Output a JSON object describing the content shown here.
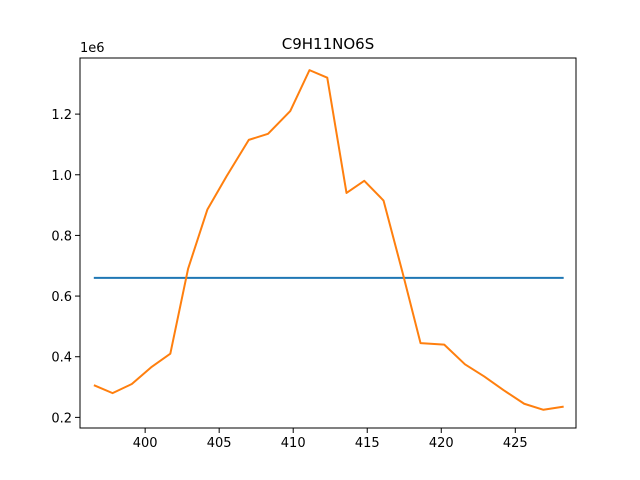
{
  "chart_data": {
    "type": "line",
    "title": "C9H11NO6S",
    "xlabel": "",
    "ylabel": "",
    "y_offset_label": "1e6",
    "xlim": [
      395.6,
      429.1
    ],
    "ylim": [
      0.165,
      1.385
    ],
    "x_ticks": [
      400,
      405,
      410,
      415,
      420,
      425
    ],
    "x_tick_labels": [
      "400",
      "405",
      "410",
      "415",
      "420",
      "425"
    ],
    "y_ticks": [
      0.2,
      0.4,
      0.6,
      0.8,
      1.0,
      1.2
    ],
    "y_tick_labels": [
      "0.2",
      "0.4",
      "0.6",
      "0.8",
      "1.0",
      "1.2"
    ],
    "grid": false,
    "series": [
      {
        "color": "#1f77b4",
        "x": [
          396.6,
          428.2
        ],
        "y": [
          0.66,
          0.66
        ]
      },
      {
        "color": "#ff7f0e",
        "x": [
          396.6,
          397.8,
          399.1,
          400.4,
          401.7,
          402.9,
          404.2,
          405.5,
          407.0,
          408.3,
          409.8,
          411.1,
          412.3,
          413.6,
          414.8,
          416.1,
          417.4,
          418.6,
          420.2,
          421.6,
          422.9,
          424.2,
          425.6,
          426.9,
          428.2
        ],
        "y": [
          0.305,
          0.28,
          0.31,
          0.365,
          0.41,
          0.69,
          0.885,
          0.995,
          1.115,
          1.135,
          1.21,
          1.345,
          1.32,
          0.94,
          0.98,
          0.915,
          0.675,
          0.445,
          0.44,
          0.375,
          0.335,
          0.29,
          0.245,
          0.225,
          0.235
        ]
      }
    ]
  }
}
